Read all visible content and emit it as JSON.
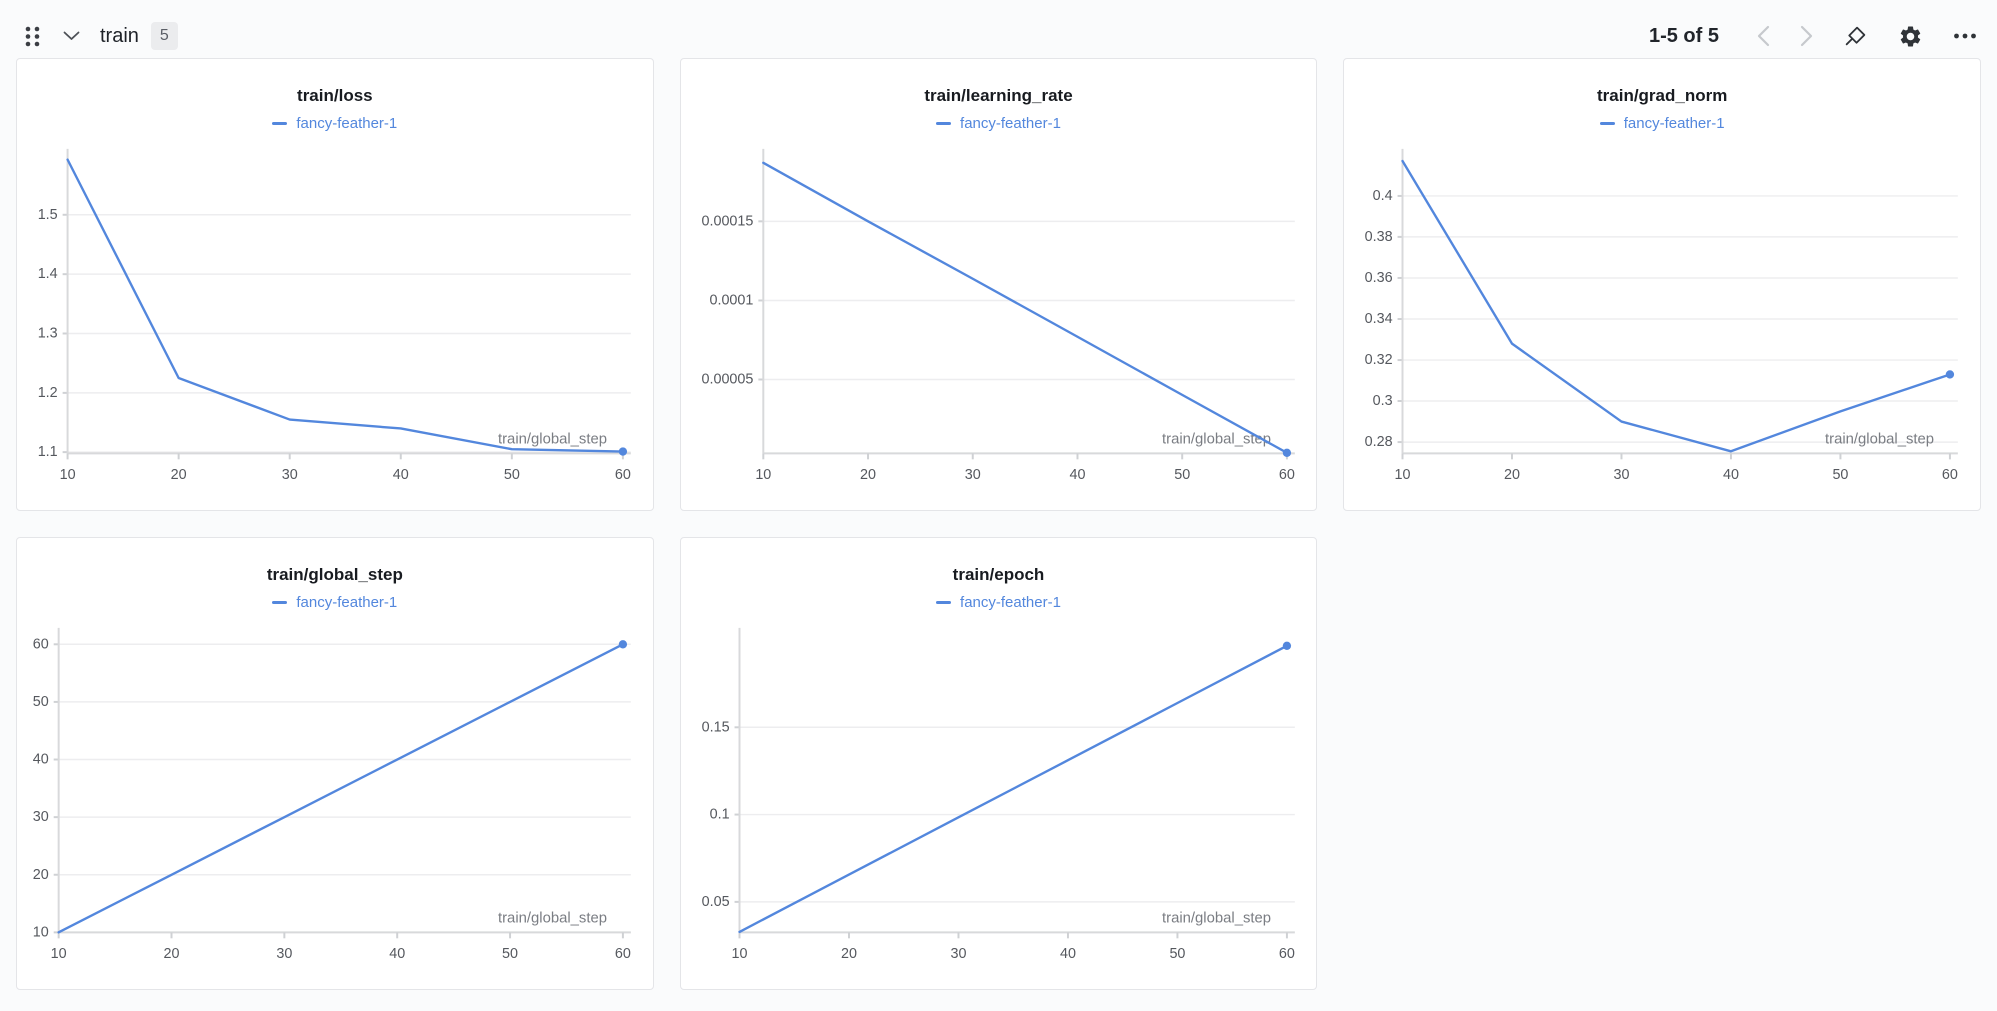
{
  "accent_color": "#5387dd",
  "header": {
    "title": "train",
    "badge_count": "5",
    "pagination": "1-5 of 5",
    "icons": [
      "drag-handle",
      "chevron-down",
      "chevron-left",
      "chevron-right",
      "pin",
      "gear",
      "ellipsis"
    ]
  },
  "chart_data": [
    {
      "type": "line",
      "title": "train/loss",
      "xlabel": "train/global_step",
      "series": [
        {
          "name": "fancy-feather-1",
          "x": [
            10,
            20,
            30,
            40,
            50,
            60
          ],
          "y": [
            1.593,
            1.225,
            1.155,
            1.14,
            1.105,
            1.101
          ]
        }
      ],
      "xticks": [
        10,
        20,
        30,
        40,
        50,
        60
      ],
      "yticks": [
        1.1,
        1.2,
        1.3,
        1.4,
        1.5
      ],
      "ytick_labels": [
        "1.1",
        "1.2",
        "1.3",
        "1.4",
        "1.5"
      ],
      "xlim": [
        10,
        60
      ],
      "ylim": [
        1.098,
        1.601
      ],
      "grid": true,
      "legend_position": "top",
      "end_marker": true
    },
    {
      "type": "line",
      "title": "train/learning_rate",
      "xlabel": "train/global_step",
      "series": [
        {
          "name": "fancy-feather-1",
          "x": [
            10,
            20,
            30,
            40,
            50,
            60
          ],
          "y": [
            0.000187,
            0.00015,
            0.0001137,
            7.7e-05,
            4.03e-05,
            3.7e-06
          ]
        }
      ],
      "xticks": [
        10,
        20,
        30,
        40,
        50,
        60
      ],
      "yticks": [
        5e-05,
        0.0001,
        0.00015
      ],
      "ytick_labels": [
        "0.00005",
        "0.0001",
        "0.00015"
      ],
      "xlim": [
        10,
        60
      ],
      "ylim": [
        3.3e-06,
        0.000192
      ],
      "grid": true,
      "legend_position": "top",
      "end_marker": true
    },
    {
      "type": "line",
      "title": "train/grad_norm",
      "xlabel": "train/global_step",
      "series": [
        {
          "name": "fancy-feather-1",
          "x": [
            10,
            20,
            30,
            40,
            50,
            60
          ],
          "y": [
            0.417,
            0.328,
            0.29,
            0.2755,
            0.295,
            0.313
          ]
        }
      ],
      "xticks": [
        10,
        20,
        30,
        40,
        50,
        60
      ],
      "yticks": [
        0.28,
        0.3,
        0.32,
        0.34,
        0.36,
        0.38,
        0.4
      ],
      "ytick_labels": [
        "0.28",
        "0.3",
        "0.32",
        "0.34",
        "0.36",
        "0.38",
        "0.4"
      ],
      "xlim": [
        10,
        60
      ],
      "ylim": [
        0.2745,
        0.42
      ],
      "grid": true,
      "legend_position": "top",
      "end_marker": true
    },
    {
      "type": "line",
      "title": "train/global_step",
      "xlabel": "train/global_step",
      "series": [
        {
          "name": "fancy-feather-1",
          "x": [
            10,
            20,
            30,
            40,
            50,
            60
          ],
          "y": [
            10,
            20,
            30,
            40,
            50,
            60
          ]
        }
      ],
      "xticks": [
        10,
        20,
        30,
        40,
        50,
        60
      ],
      "yticks": [
        10,
        20,
        30,
        40,
        50,
        60
      ],
      "ytick_labels": [
        "10",
        "20",
        "30",
        "40",
        "50",
        "60"
      ],
      "xlim": [
        10,
        60
      ],
      "ylim": [
        10,
        61.8
      ],
      "grid": true,
      "legend_position": "top",
      "end_marker": true
    },
    {
      "type": "line",
      "title": "train/epoch",
      "xlabel": "train/global_step",
      "series": [
        {
          "name": "fancy-feather-1",
          "x": [
            10,
            20,
            30,
            40,
            50,
            60
          ],
          "y": [
            0.0328,
            0.0656,
            0.0984,
            0.1311,
            0.1639,
            0.1967
          ]
        }
      ],
      "xticks": [
        10,
        20,
        30,
        40,
        50,
        60
      ],
      "yticks": [
        0.05,
        0.1,
        0.15
      ],
      "ytick_labels": [
        "0.05",
        "0.1",
        "0.15"
      ],
      "xlim": [
        10,
        60
      ],
      "ylim": [
        0.0325,
        0.2035
      ],
      "grid": true,
      "legend_position": "top",
      "end_marker": true
    }
  ]
}
